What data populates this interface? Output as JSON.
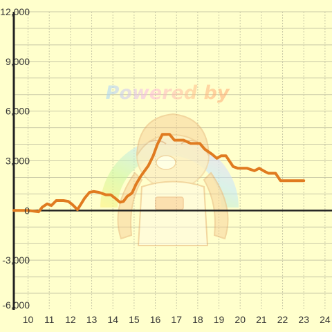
{
  "chart_data": {
    "type": "line",
    "title": "",
    "xlabel": "",
    "ylabel": "",
    "xlim": [
      9.33,
      24.33
    ],
    "ylim": [
      -6000,
      12000
    ],
    "x_ticks": [
      "10",
      "11",
      "12",
      "13",
      "14",
      "15",
      "16",
      "17",
      "18",
      "19",
      "20",
      "21",
      "22",
      "23",
      "24"
    ],
    "y_ticks": [
      "12,000",
      "9,000",
      "6,000",
      "3,000",
      "0",
      "-3,000",
      "-6,000"
    ],
    "grid": true,
    "series": [
      {
        "color": "#e07b20",
        "points": [
          [
            9.33,
            0
          ],
          [
            10.0,
            0
          ],
          [
            10.33,
            -50
          ],
          [
            10.5,
            -80
          ],
          [
            10.67,
            200
          ],
          [
            10.9,
            400
          ],
          [
            11.1,
            300
          ],
          [
            11.33,
            600
          ],
          [
            11.67,
            600
          ],
          [
            11.9,
            550
          ],
          [
            12.1,
            350
          ],
          [
            12.33,
            50
          ],
          [
            12.5,
            400
          ],
          [
            12.67,
            750
          ],
          [
            12.9,
            1100
          ],
          [
            13.1,
            1150
          ],
          [
            13.33,
            1100
          ],
          [
            13.67,
            950
          ],
          [
            13.9,
            950
          ],
          [
            14.1,
            750
          ],
          [
            14.33,
            500
          ],
          [
            14.5,
            550
          ],
          [
            14.67,
            850
          ],
          [
            14.9,
            1050
          ],
          [
            15.1,
            1600
          ],
          [
            15.33,
            2100
          ],
          [
            15.67,
            2700
          ],
          [
            15.9,
            3300
          ],
          [
            16.1,
            4000
          ],
          [
            16.33,
            4600
          ],
          [
            16.67,
            4600
          ],
          [
            16.9,
            4250
          ],
          [
            17.1,
            4250
          ],
          [
            17.33,
            4250
          ],
          [
            17.67,
            4050
          ],
          [
            17.9,
            4050
          ],
          [
            18.1,
            4050
          ],
          [
            18.33,
            3700
          ],
          [
            18.67,
            3400
          ],
          [
            18.9,
            3150
          ],
          [
            19.1,
            3300
          ],
          [
            19.33,
            3300
          ],
          [
            19.67,
            2650
          ],
          [
            19.9,
            2550
          ],
          [
            20.1,
            2550
          ],
          [
            20.33,
            2550
          ],
          [
            20.67,
            2400
          ],
          [
            20.9,
            2550
          ],
          [
            21.1,
            2400
          ],
          [
            21.33,
            2250
          ],
          [
            21.67,
            2250
          ],
          [
            21.9,
            1800
          ],
          [
            22.1,
            1800
          ],
          [
            22.33,
            1800
          ],
          [
            22.67,
            1800
          ],
          [
            23.0,
            1800
          ]
        ]
      }
    ],
    "colors": {
      "background": "#ffffcc",
      "grid": "#c8c8a6",
      "axis": "#222222",
      "line": "#e07b20"
    }
  },
  "watermark": {
    "text": "Powered by"
  }
}
